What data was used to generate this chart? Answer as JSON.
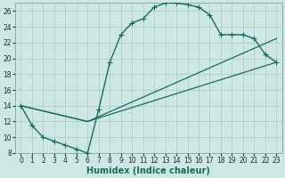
{
  "xlabel": "Humidex (Indice chaleur)",
  "xlim": [
    -0.5,
    23.5
  ],
  "ylim": [
    8,
    27
  ],
  "xticks": [
    0,
    1,
    2,
    3,
    4,
    5,
    6,
    7,
    8,
    9,
    10,
    11,
    12,
    13,
    14,
    15,
    16,
    17,
    18,
    19,
    20,
    21,
    22,
    23
  ],
  "yticks": [
    8,
    10,
    12,
    14,
    16,
    18,
    20,
    22,
    24,
    26
  ],
  "background_color": "#cde8e4",
  "grid_color": "#b0d0cc",
  "line_color": "#1a6b5a",
  "line1_x": [
    0,
    1,
    2,
    3,
    4,
    5,
    6,
    7,
    8,
    9,
    10,
    11,
    12,
    13,
    14,
    15,
    16,
    17,
    18,
    19,
    20,
    21,
    22,
    23
  ],
  "line1_y": [
    14,
    11.5,
    10,
    9.5,
    9,
    8.5,
    8.0,
    13.5,
    19.5,
    23.0,
    24.5,
    25.0,
    26.5,
    27.0,
    27.0,
    26.8,
    26.5,
    25.5,
    23.0,
    23.0,
    23.0,
    22.5,
    20.5,
    19.5
  ],
  "line2_x": [
    0,
    6,
    23
  ],
  "line2_y": [
    14,
    12,
    19.5
  ],
  "line3_x": [
    0,
    6,
    23
  ],
  "line3_y": [
    14,
    12,
    22.5
  ],
  "marker_style": "+",
  "marker_size": 4,
  "linewidth1": 1.0,
  "linewidth2": 0.9,
  "fontsize_ticks": 5.5,
  "fontsize_xlabel": 7
}
